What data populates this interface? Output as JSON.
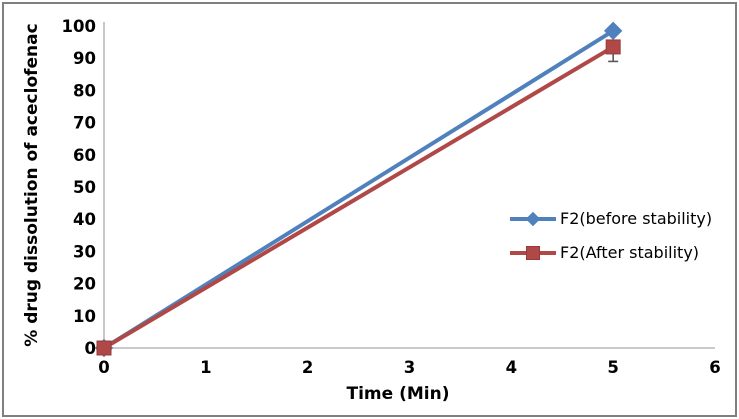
{
  "figure": {
    "background": "#ffffff",
    "border_color": "#7f7f7f"
  },
  "chart_data": {
    "type": "line",
    "title": "",
    "xlabel": "Time (Min)",
    "ylabel": "% drug dissolution of aceclofenac",
    "xlim": [
      0,
      6
    ],
    "ylim": [
      0,
      100
    ],
    "x_ticks": [
      0,
      1,
      2,
      3,
      4,
      5,
      6
    ],
    "y_ticks": [
      0,
      10,
      20,
      30,
      40,
      50,
      60,
      70,
      80,
      90,
      100
    ],
    "grid": false,
    "legend_position": "center-right",
    "axis_color": "#ababab",
    "tick_label_color": "#000000",
    "error_bar_color": "#595959",
    "series": [
      {
        "name": "F2(before stability)",
        "x": [
          0,
          5
        ],
        "values": [
          0,
          98.5
        ],
        "color": "#4f81bd",
        "marker": "diamond",
        "error_bars": []
      },
      {
        "name": "F2(After stability)",
        "x": [
          0,
          5
        ],
        "values": [
          0,
          93.5
        ],
        "color": "#af4846",
        "marker": "square",
        "error_bars": [
          {
            "x": 5,
            "minus": 4.5
          }
        ]
      }
    ]
  }
}
